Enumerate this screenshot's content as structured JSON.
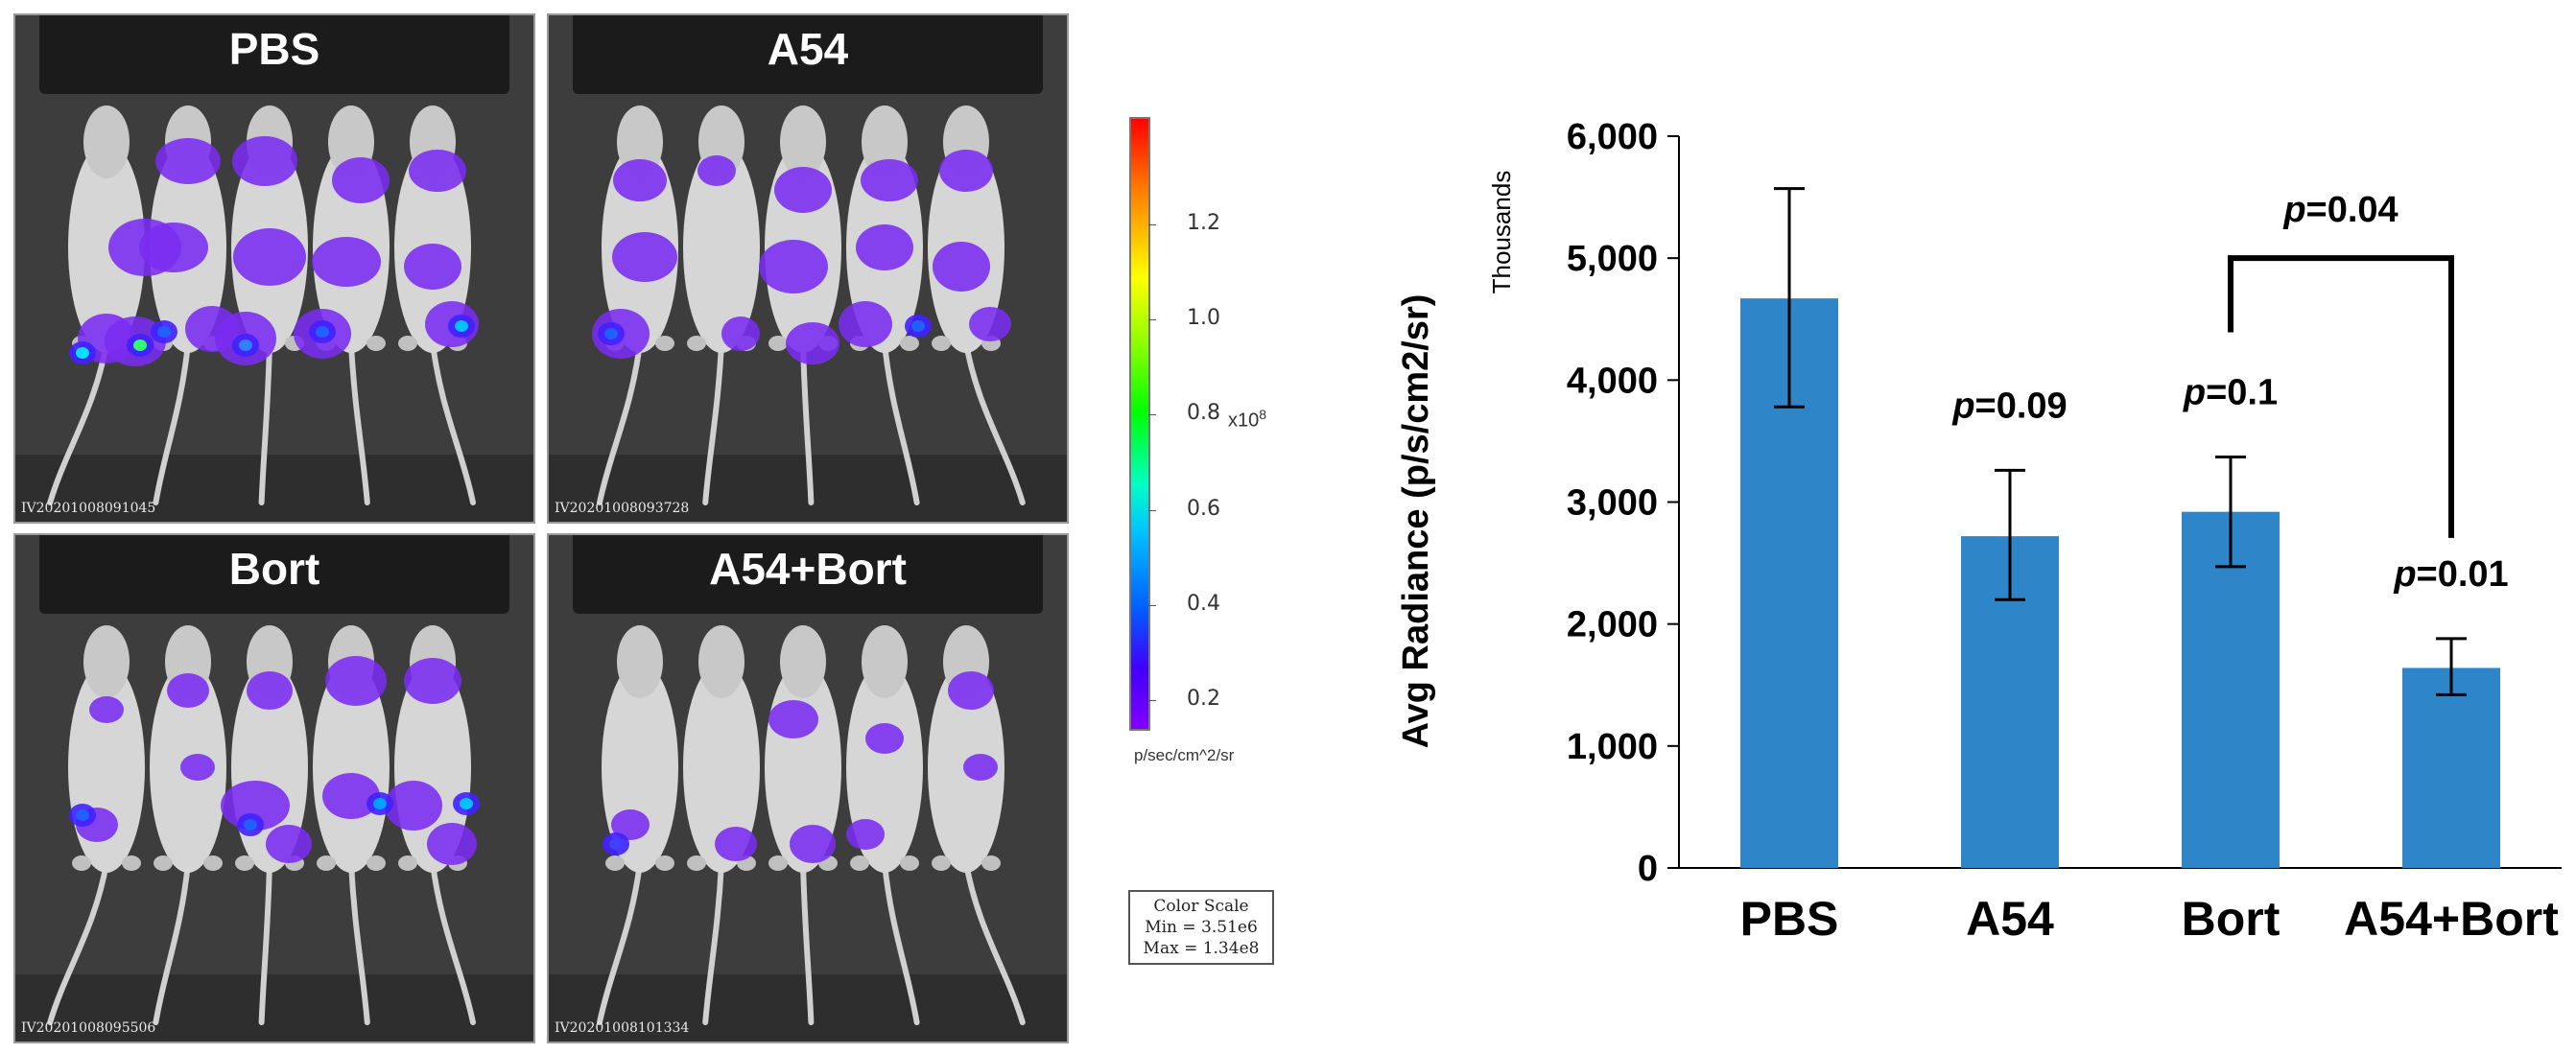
{
  "panels": [
    {
      "label": "PBS",
      "image_id": "IV20201008091045"
    },
    {
      "label": "A54",
      "image_id": "IV20201008093728"
    },
    {
      "label": "Bort",
      "image_id": "IV20201008095506"
    },
    {
      "label": "A54+Bort",
      "image_id": "IV20201008101334"
    }
  ],
  "colorbar": {
    "ticks": [
      "1.2",
      "1.0",
      "0.8",
      "0.6",
      "0.4",
      "0.2"
    ],
    "exponent_label": "x10",
    "exponent": "8",
    "units": "p/sec/cm^2/sr",
    "scale_title": "Color Scale",
    "scale_min": "Min = 3.51e6",
    "scale_max": "Max = 1.34e8"
  },
  "chart_data": {
    "type": "bar",
    "categories": [
      "PBS",
      "A54",
      "Bort",
      "A54+Bort"
    ],
    "values": [
      4670,
      2720,
      2920,
      1640
    ],
    "error_bars": [
      [
        3780,
        5570
      ],
      [
        2200,
        3260
      ],
      [
        2470,
        3370
      ],
      [
        1420,
        1880
      ]
    ],
    "ylabel": "Avg Radiance (p/s/cm2/sr)",
    "yunit_label": "Thousands",
    "ylim": [
      0,
      6000
    ],
    "yticks": [
      "0",
      "1,000",
      "2,000",
      "3,000",
      "4,000",
      "5,000",
      "6,000"
    ],
    "bar_color": "#2e86c8",
    "annotations": [
      {
        "prefix": "p",
        "text": "=0.09",
        "category": "A54"
      },
      {
        "prefix": "p",
        "text": "=0.1",
        "category": "Bort"
      },
      {
        "prefix": "p",
        "text": "=0.01",
        "category": "A54+Bort"
      }
    ],
    "bracket": {
      "prefix": "p",
      "text": "=0.04",
      "from": "Bort",
      "to": "A54+Bort"
    }
  }
}
